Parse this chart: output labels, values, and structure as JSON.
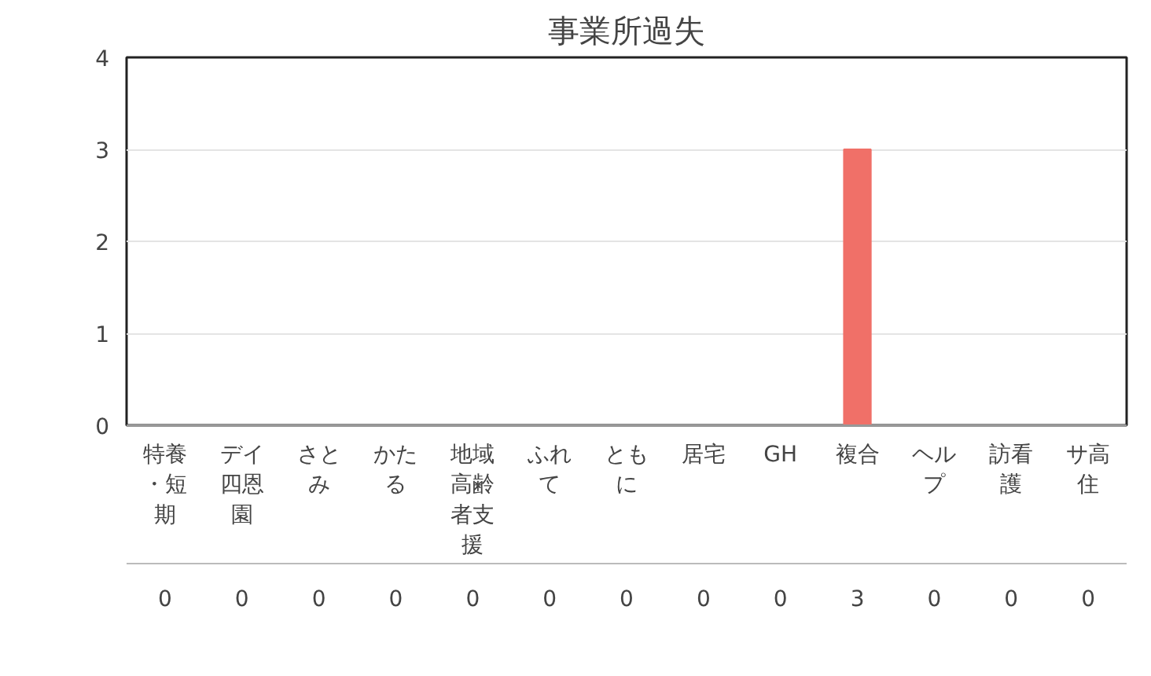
{
  "chart_data": {
    "type": "bar",
    "title": "事業所過失",
    "categories": [
      "特養・短期",
      "デイ四恩園",
      "さとみ",
      "かたる",
      "地域高齢者支援",
      "ふれて",
      "ともに",
      "居宅",
      "GH",
      "複合",
      "ヘルプ",
      "訪看護",
      "サ高住"
    ],
    "values": [
      0,
      0,
      0,
      0,
      0,
      0,
      0,
      0,
      0,
      3,
      0,
      0,
      0
    ],
    "color": "#f07068",
    "ylim": [
      0,
      4
    ],
    "yticks": [
      0,
      1,
      2,
      3,
      4
    ],
    "grid": "y",
    "data_labels": true
  }
}
